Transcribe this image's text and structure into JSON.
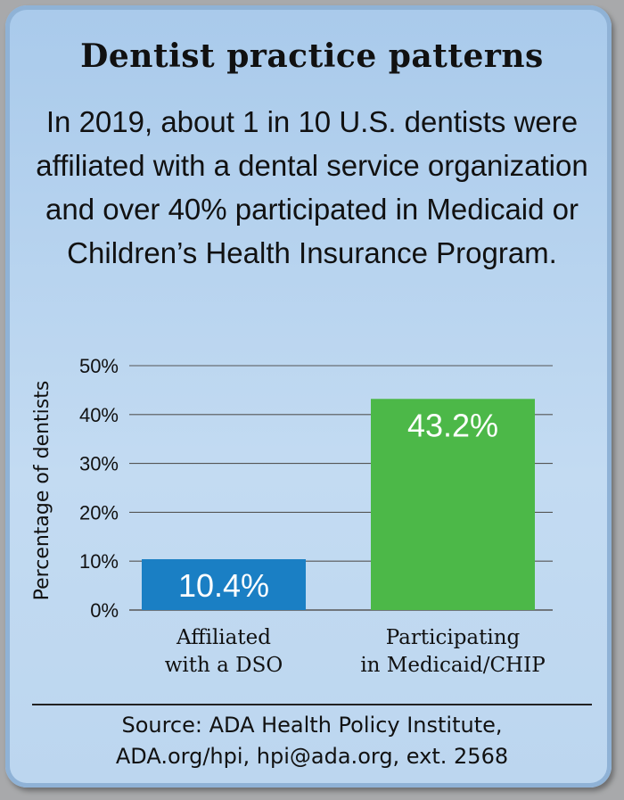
{
  "title": "Dentist practice patterns",
  "subtitle": "In 2019, about 1 in 10 U.S. dentists were affiliated with a dental service organization and over 40% participated in Medicaid or Children’s Health Insurance Program.",
  "colors": {
    "dso": "#1a7fc4",
    "medicaid": "#4cb848",
    "grid": "#555555"
  },
  "chart_data": {
    "type": "bar",
    "ylabel": "Percentage of dentists",
    "ylim": [
      0,
      50
    ],
    "yticks": [
      0,
      10,
      20,
      30,
      40,
      50
    ],
    "ytick_labels": [
      "0%",
      "10%",
      "20%",
      "30%",
      "40%",
      "50%"
    ],
    "grid": true,
    "bars": [
      {
        "label_line1": "Affiliated",
        "label_line2": "with a DSO",
        "value": 10.4,
        "value_label": "10.4%",
        "color": "#1a7fc4"
      },
      {
        "label_line1": "Participating",
        "label_line2": "in Medicaid/CHIP",
        "value": 43.2,
        "value_label": "43.2%",
        "color": "#4cb848"
      }
    ]
  },
  "source": {
    "line1": "Source: ADA Health Policy Institute,",
    "line2": "ADA.org/hpi, hpi@ada.org, ext. 2568"
  }
}
